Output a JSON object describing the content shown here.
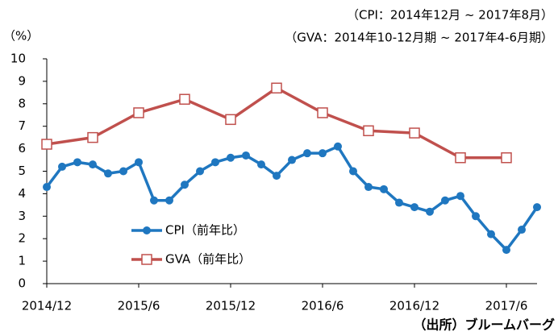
{
  "chart_data": {
    "type": "line",
    "unit_label": "（%）",
    "subtitle_lines": [
      "（CPI：2014年12月 ~ 2017年8月）",
      "（GVA：2014年10-12月期 ~ 2017年4-6月期）"
    ],
    "source": "（出所）ブルームバーグ",
    "xlim": [
      "2014/12",
      "2017/8"
    ],
    "xticks": [
      "2014/12",
      "2015/6",
      "2015/12",
      "2016/6",
      "2016/12",
      "2017/6"
    ],
    "ylim": [
      0,
      10
    ],
    "yticks": [
      0,
      1,
      2,
      3,
      4,
      5,
      6,
      7,
      8,
      9,
      10
    ],
    "grid": false,
    "legend": "lower left",
    "series": [
      {
        "name": "CPI（前年比）",
        "color": "#1f77c0",
        "marker": "circle",
        "x": [
          "2014/12",
          "2015/1",
          "2015/2",
          "2015/3",
          "2015/4",
          "2015/5",
          "2015/6",
          "2015/7",
          "2015/8",
          "2015/9",
          "2015/10",
          "2015/11",
          "2015/12",
          "2016/1",
          "2016/2",
          "2016/3",
          "2016/4",
          "2016/5",
          "2016/6",
          "2016/7",
          "2016/8",
          "2016/9",
          "2016/10",
          "2016/11",
          "2016/12",
          "2017/1",
          "2017/2",
          "2017/3",
          "2017/4",
          "2017/5",
          "2017/6",
          "2017/7",
          "2017/8"
        ],
        "values": [
          4.3,
          5.2,
          5.4,
          5.3,
          4.9,
          5.0,
          5.4,
          3.7,
          3.7,
          4.4,
          5.0,
          5.4,
          5.6,
          5.7,
          5.3,
          4.8,
          5.5,
          5.8,
          5.8,
          6.1,
          5.0,
          4.3,
          4.2,
          3.6,
          3.4,
          3.2,
          3.7,
          3.9,
          3.0,
          2.2,
          1.5,
          2.4,
          3.4
        ]
      },
      {
        "name": "GVA（前年比）",
        "color": "#c0504d",
        "marker": "square",
        "x": [
          "2014/12",
          "2015/3",
          "2015/6",
          "2015/9",
          "2015/12",
          "2016/3",
          "2016/6",
          "2016/9",
          "2016/12",
          "2017/3",
          "2017/6"
        ],
        "values": [
          6.2,
          6.5,
          7.6,
          8.2,
          7.3,
          8.7,
          7.6,
          6.8,
          6.7,
          5.6,
          5.6
        ]
      }
    ]
  }
}
